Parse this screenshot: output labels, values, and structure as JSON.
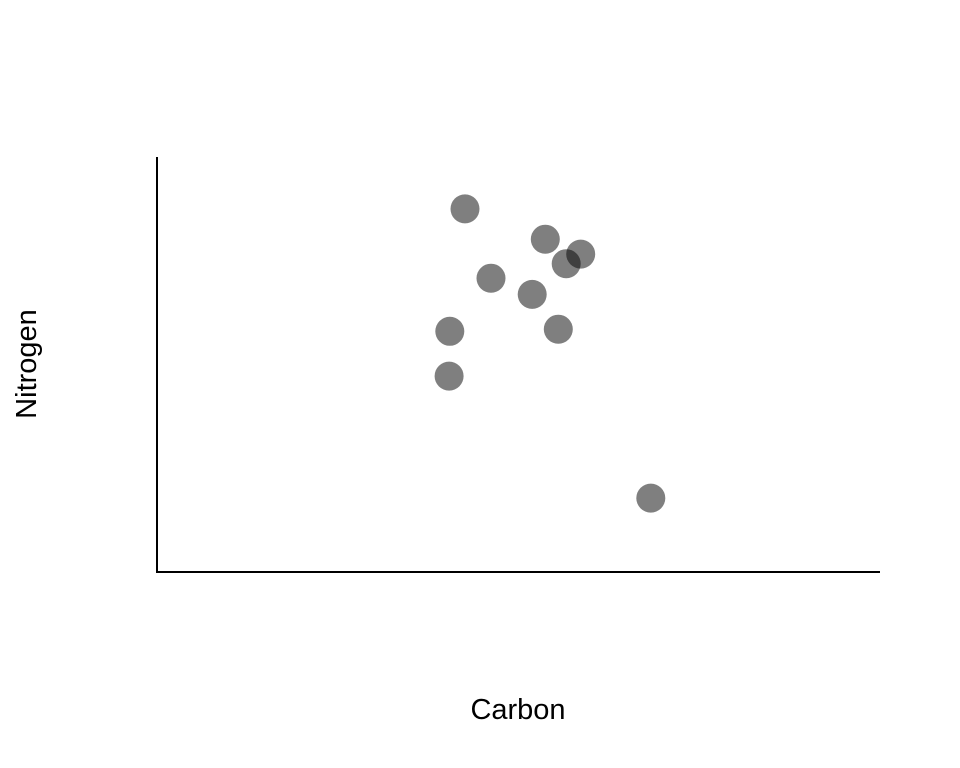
{
  "chart_data": {
    "type": "scatter",
    "title": "",
    "xlabel": "Carbon",
    "ylabel": "Nitrogen",
    "xlim": [
      0,
      100
    ],
    "ylim": [
      0,
      100
    ],
    "grid": false,
    "legend": "none",
    "tick_labels": false,
    "point_color": "#000000",
    "point_opacity": 0.5,
    "series": [
      {
        "x": [
          42.6,
          46.2,
          53.7,
          58.6,
          56.6,
          51.9,
          40.5,
          55.5,
          40.4,
          68.3
        ],
        "y": [
          87.5,
          70.8,
          80.2,
          76.6,
          74.3,
          66.9,
          58.0,
          58.5,
          47.2,
          17.8
        ]
      }
    ]
  }
}
